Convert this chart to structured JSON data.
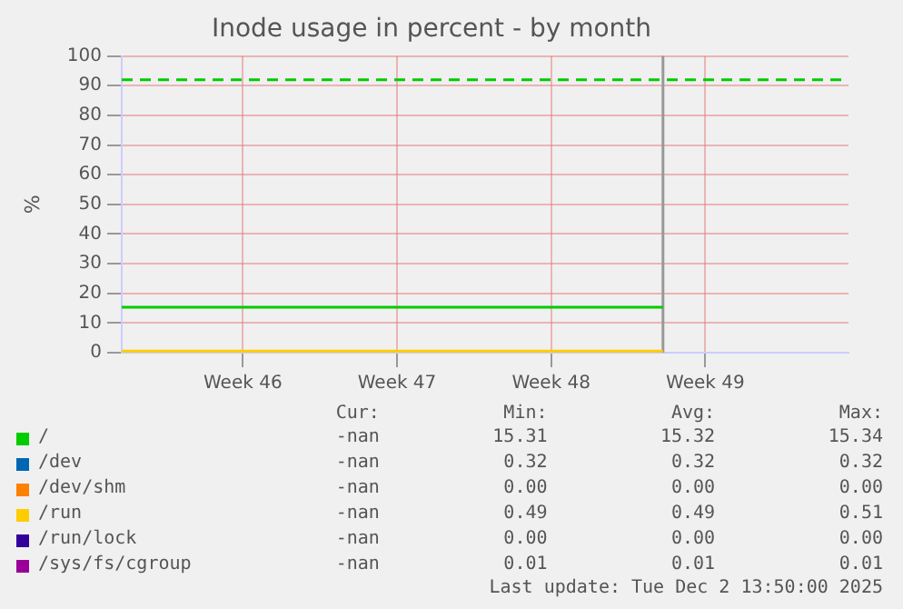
{
  "chart_data": {
    "type": "line",
    "title": "Inode usage in percent - by month",
    "ylabel": "%",
    "x": [
      "2025-11-08",
      "2025-12-02T13:50"
    ],
    "series": [
      {
        "name": "/",
        "color": "#00cc00",
        "values": [
          15.3,
          15.3
        ]
      },
      {
        "name": "/dev",
        "color": "#0066b3",
        "values": [
          null,
          null
        ]
      },
      {
        "name": "/dev/shm",
        "color": "#ff8000",
        "values": [
          null,
          null
        ]
      },
      {
        "name": "/run",
        "color": "#ffcc00",
        "values": [
          0.5,
          0.5
        ]
      },
      {
        "name": "/run/lock",
        "color": "#330099",
        "values": [
          null,
          null
        ]
      },
      {
        "name": "/sys/fs/cgroup",
        "color": "#990099",
        "values": [
          null,
          null
        ]
      }
    ],
    "xlim": [
      "2025-11-08",
      "2025-12-11"
    ],
    "xticks": [
      {
        "value": "2025-11-13T12:00",
        "label": "Week 46"
      },
      {
        "value": "2025-11-20T12:00",
        "label": "Week 47"
      },
      {
        "value": "2025-11-27T12:00",
        "label": "Week 48"
      },
      {
        "value": "2025-12-04T12:00",
        "label": "Week 49"
      }
    ],
    "ylim": [
      0,
      100
    ],
    "yticks": [
      0,
      10,
      20,
      30,
      40,
      50,
      60,
      70,
      80,
      90,
      100
    ],
    "ref_lines": [
      {
        "axis": "y",
        "value": 92,
        "color": "#00cc00",
        "line_style": "dashed"
      },
      {
        "axis": "x",
        "value": "2025-12-02T13:50",
        "color": "#999999",
        "line_style": "solid"
      }
    ],
    "grid": true,
    "legend": "bottom",
    "marker": "none",
    "line_style": "solid",
    "annotations": [
      "Cur:",
      "Min:",
      "Avg:",
      "Max:",
      "-nan",
      "15.31",
      "15.32",
      "15.34",
      "-nan",
      "0.32",
      "0.32",
      "0.32",
      "-nan",
      "0.00",
      "0.00",
      "0.00",
      "-nan",
      "0.49",
      "0.49",
      "0.51",
      "-nan",
      "0.00",
      "0.00",
      "0.00",
      "-nan",
      "0.01",
      "0.01",
      "0.01",
      "Last update: Tue Dec  2 13:50:00 2025"
    ]
  }
}
